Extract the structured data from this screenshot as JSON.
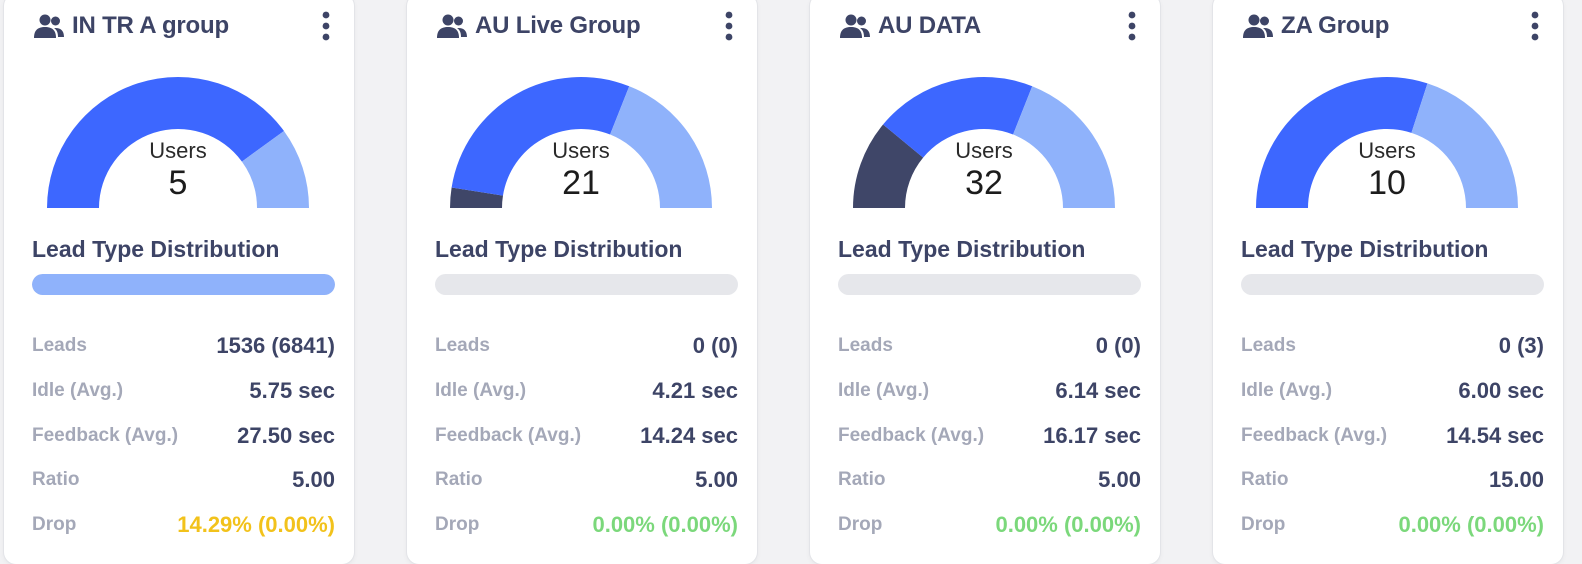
{
  "colors": {
    "primary": "#3d67ff",
    "light": "#8fb2fb",
    "dark": "#3f4668",
    "track": "#e6e7eb",
    "drop_warning": "#f2c21b",
    "drop_ok": "#7bd87b"
  },
  "icons": {
    "group": "group-icon",
    "menu": "kebab-menu-icon"
  },
  "stat_labels": {
    "leads": "Leads",
    "idle": "Idle (Avg.)",
    "feedback": "Feedback (Avg.)",
    "ratio": "Ratio",
    "drop": "Drop"
  },
  "cards": [
    {
      "name": "IN TR A group",
      "users_label": "Users",
      "users": "5",
      "gauge_segments": [
        {
          "color": "dark",
          "fraction": 0
        },
        {
          "color": "primary",
          "fraction": 0.8
        },
        {
          "color": "light",
          "fraction": 0.2
        }
      ],
      "distribution_title": "Lead Type Distribution",
      "distribution_fill": 1.0,
      "leads": "1536 (6841)",
      "idle": "5.75 sec",
      "feedback": "27.50 sec",
      "ratio": "5.00",
      "drop": "14.29% (0.00%)",
      "drop_status": "drop_warning"
    },
    {
      "name": "AU Live Group",
      "users_label": "Users",
      "users": "21",
      "gauge_segments": [
        {
          "color": "dark",
          "fraction": 0.05
        },
        {
          "color": "primary",
          "fraction": 0.57
        },
        {
          "color": "light",
          "fraction": 0.38
        }
      ],
      "distribution_title": "Lead Type Distribution",
      "distribution_fill": 0,
      "leads": "0 (0)",
      "idle": "4.21 sec",
      "feedback": "14.24 sec",
      "ratio": "5.00",
      "drop": "0.00% (0.00%)",
      "drop_status": "drop_ok"
    },
    {
      "name": "AU DATA",
      "users_label": "Users",
      "users": "32",
      "gauge_segments": [
        {
          "color": "dark",
          "fraction": 0.22
        },
        {
          "color": "primary",
          "fraction": 0.4
        },
        {
          "color": "light",
          "fraction": 0.38
        }
      ],
      "distribution_title": "Lead Type Distribution",
      "distribution_fill": 0,
      "leads": "0 (0)",
      "idle": "6.14 sec",
      "feedback": "16.17 sec",
      "ratio": "5.00",
      "drop": "0.00% (0.00%)",
      "drop_status": "drop_ok"
    },
    {
      "name": "ZA Group",
      "users_label": "Users",
      "users": "10",
      "gauge_segments": [
        {
          "color": "dark",
          "fraction": 0
        },
        {
          "color": "primary",
          "fraction": 0.6
        },
        {
          "color": "light",
          "fraction": 0.4
        }
      ],
      "distribution_title": "Lead Type Distribution",
      "distribution_fill": 0,
      "leads": "0 (3)",
      "idle": "6.00 sec",
      "feedback": "14.54 sec",
      "ratio": "15.00",
      "drop": "0.00% (0.00%)",
      "drop_status": "drop_ok"
    }
  ]
}
